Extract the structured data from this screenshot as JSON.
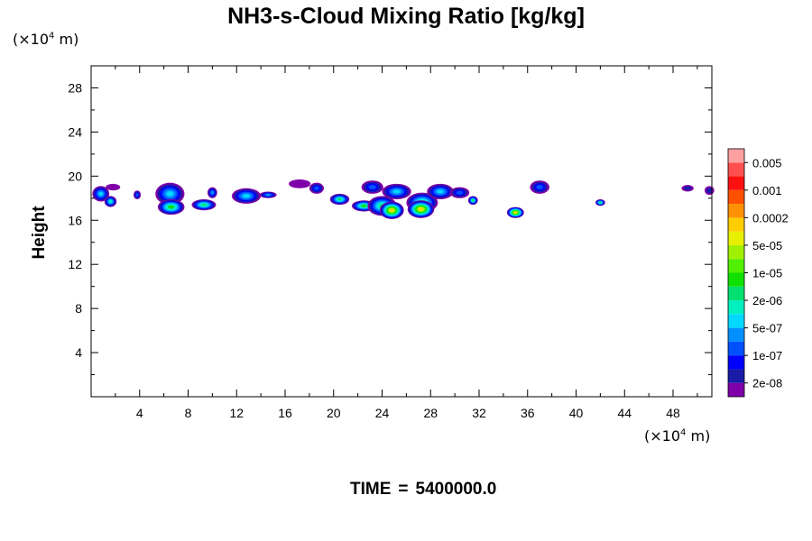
{
  "chart_data": {
    "type": "heatmap",
    "title": "NH3-s-Cloud Mixing Ratio [kg/kg]",
    "ylabel": "Height",
    "y_unit": {
      "prefix": "(×10",
      "exp": "4",
      "suffix": " m)"
    },
    "x_unit": {
      "prefix": "(×10",
      "exp": "4",
      "suffix": " m)"
    },
    "xlim": [
      0,
      51.2
    ],
    "ylim": [
      0,
      30
    ],
    "x_ticks": [
      4,
      8,
      12,
      16,
      20,
      24,
      28,
      32,
      36,
      40,
      44,
      48
    ],
    "y_ticks": [
      4,
      8,
      12,
      16,
      20,
      24,
      28
    ],
    "colorbar": {
      "colors": [
        "#7f00a8",
        "#1a1aa8",
        "#0000ff",
        "#0050ff",
        "#0090ff",
        "#00d8ff",
        "#00f0c0",
        "#00e070",
        "#10e000",
        "#50f000",
        "#a0f000",
        "#e8f000",
        "#ffcc00",
        "#ff9000",
        "#ff5000",
        "#ff1010",
        "#ff5050",
        "#ffa0a0"
      ],
      "labels": [
        "2e-08",
        "1e-07",
        "5e-07",
        "2e-06",
        "1e-05",
        "5e-05",
        "0.0002",
        "0.001",
        "0.005"
      ]
    },
    "clouds": [
      {
        "x": 0.8,
        "y": 18.4,
        "rx": 0.7,
        "ry": 0.7,
        "level": 5
      },
      {
        "x": 1.6,
        "y": 17.7,
        "rx": 0.5,
        "ry": 0.5,
        "level": 6
      },
      {
        "x": 1.8,
        "y": 19.0,
        "rx": 0.6,
        "ry": 0.3,
        "level": 0
      },
      {
        "x": 3.8,
        "y": 18.3,
        "rx": 0.3,
        "ry": 0.4,
        "level": 3
      },
      {
        "x": 6.5,
        "y": 18.4,
        "rx": 1.2,
        "ry": 1.0,
        "level": 5
      },
      {
        "x": 6.6,
        "y": 17.2,
        "rx": 1.1,
        "ry": 0.7,
        "level": 8
      },
      {
        "x": 9.3,
        "y": 17.4,
        "rx": 1.0,
        "ry": 0.5,
        "level": 7
      },
      {
        "x": 10.0,
        "y": 18.5,
        "rx": 0.4,
        "ry": 0.5,
        "level": 4
      },
      {
        "x": 12.8,
        "y": 18.2,
        "rx": 1.2,
        "ry": 0.7,
        "level": 5
      },
      {
        "x": 14.6,
        "y": 18.3,
        "rx": 0.7,
        "ry": 0.3,
        "level": 4
      },
      {
        "x": 17.2,
        "y": 19.3,
        "rx": 0.9,
        "ry": 0.4,
        "level": 0
      },
      {
        "x": 18.6,
        "y": 18.9,
        "rx": 0.6,
        "ry": 0.5,
        "level": 3
      },
      {
        "x": 20.5,
        "y": 17.9,
        "rx": 0.8,
        "ry": 0.5,
        "level": 7
      },
      {
        "x": 22.5,
        "y": 17.3,
        "rx": 1.0,
        "ry": 0.5,
        "level": 8
      },
      {
        "x": 23.2,
        "y": 19.0,
        "rx": 0.9,
        "ry": 0.6,
        "level": 3
      },
      {
        "x": 24.0,
        "y": 17.3,
        "rx": 1.2,
        "ry": 0.9,
        "level": 7
      },
      {
        "x": 24.8,
        "y": 16.9,
        "rx": 1.0,
        "ry": 0.8,
        "level": 12
      },
      {
        "x": 25.2,
        "y": 18.6,
        "rx": 1.2,
        "ry": 0.7,
        "level": 5
      },
      {
        "x": 27.3,
        "y": 17.6,
        "rx": 1.3,
        "ry": 0.9,
        "level": 7
      },
      {
        "x": 27.2,
        "y": 17.0,
        "rx": 1.1,
        "ry": 0.8,
        "level": 12
      },
      {
        "x": 28.8,
        "y": 18.6,
        "rx": 1.1,
        "ry": 0.7,
        "level": 5
      },
      {
        "x": 30.4,
        "y": 18.5,
        "rx": 0.8,
        "ry": 0.5,
        "level": 3
      },
      {
        "x": 31.5,
        "y": 17.8,
        "rx": 0.4,
        "ry": 0.4,
        "level": 7
      },
      {
        "x": 35.0,
        "y": 16.7,
        "rx": 0.7,
        "ry": 0.5,
        "level": 12
      },
      {
        "x": 37.0,
        "y": 19.0,
        "rx": 0.8,
        "ry": 0.6,
        "level": 3
      },
      {
        "x": 42.0,
        "y": 17.6,
        "rx": 0.4,
        "ry": 0.3,
        "level": 7
      },
      {
        "x": 49.2,
        "y": 18.9,
        "rx": 0.5,
        "ry": 0.3,
        "level": 1
      },
      {
        "x": 51.0,
        "y": 18.7,
        "rx": 0.4,
        "ry": 0.4,
        "level": 1
      }
    ]
  },
  "footer": {
    "label": "TIME",
    "sep": "=",
    "value": "5400000.0"
  }
}
